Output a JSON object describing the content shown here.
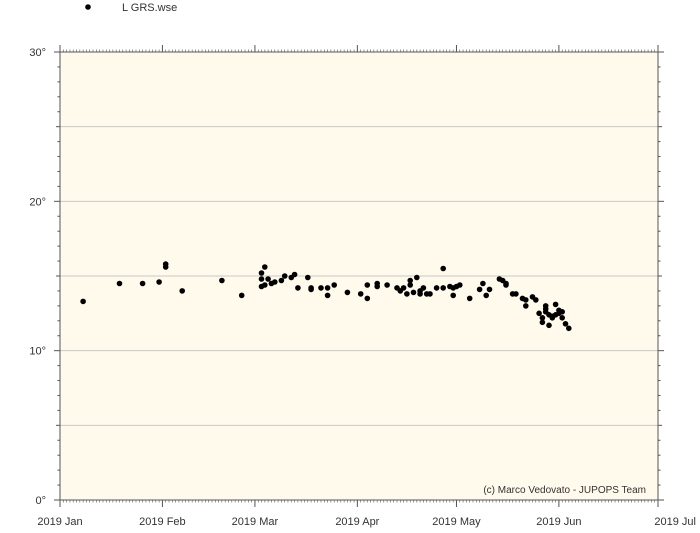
{
  "chart_data": {
    "type": "scatter",
    "xlabel": "",
    "ylabel": "",
    "x_ticks": [
      "2019 Jan",
      "2019 Feb",
      "2019 Mar",
      "2019 Apr",
      "2019 May",
      "2019 Jun",
      "2019 Jul"
    ],
    "x_range": [
      "2019-01-01",
      "2019-07-01"
    ],
    "y_ticks": [
      "0°",
      "10°",
      "20°",
      "30°"
    ],
    "ylim": [
      0,
      30
    ],
    "grid": "horizontal every 5°",
    "legend": {
      "position": "top-left",
      "label": "L GRS.wse",
      "marker": "black dot"
    },
    "credit": "(c) Marco Vedovato - JUPOPS Team",
    "colors": {
      "plot_background": "#fffaeb",
      "points": "#000000",
      "grid": "#c8c8c8",
      "frame": "#555555"
    },
    "series": [
      {
        "name": "L GRS.wse",
        "points": [
          [
            "2019-01-08",
            13.3
          ],
          [
            "2019-01-19",
            14.5
          ],
          [
            "2019-01-26",
            14.5
          ],
          [
            "2019-01-31",
            14.6
          ],
          [
            "2019-02-02",
            15.6
          ],
          [
            "2019-02-02",
            15.8
          ],
          [
            "2019-02-07",
            14.0
          ],
          [
            "2019-02-19",
            14.7
          ],
          [
            "2019-02-25",
            13.7
          ],
          [
            "2019-03-03",
            14.3
          ],
          [
            "2019-03-03",
            14.8
          ],
          [
            "2019-03-03",
            15.2
          ],
          [
            "2019-03-04",
            14.4
          ],
          [
            "2019-03-04",
            15.6
          ],
          [
            "2019-03-05",
            14.8
          ],
          [
            "2019-03-06",
            14.5
          ],
          [
            "2019-03-07",
            14.6
          ],
          [
            "2019-03-09",
            14.7
          ],
          [
            "2019-03-10",
            15.0
          ],
          [
            "2019-03-12",
            14.9
          ],
          [
            "2019-03-13",
            15.1
          ],
          [
            "2019-03-14",
            14.2
          ],
          [
            "2019-03-17",
            14.9
          ],
          [
            "2019-03-18",
            14.2
          ],
          [
            "2019-03-18",
            14.1
          ],
          [
            "2019-03-21",
            14.2
          ],
          [
            "2019-03-23",
            13.7
          ],
          [
            "2019-03-23",
            14.2
          ],
          [
            "2019-03-25",
            14.4
          ],
          [
            "2019-03-29",
            13.9
          ],
          [
            "2019-04-02",
            13.8
          ],
          [
            "2019-04-04",
            14.4
          ],
          [
            "2019-04-04",
            13.5
          ],
          [
            "2019-04-07",
            14.5
          ],
          [
            "2019-04-07",
            14.3
          ],
          [
            "2019-04-10",
            14.4
          ],
          [
            "2019-04-13",
            14.2
          ],
          [
            "2019-04-14",
            14.0
          ],
          [
            "2019-04-15",
            14.2
          ],
          [
            "2019-04-16",
            13.8
          ],
          [
            "2019-04-17",
            14.7
          ],
          [
            "2019-04-17",
            14.4
          ],
          [
            "2019-04-18",
            13.9
          ],
          [
            "2019-04-19",
            14.9
          ],
          [
            "2019-04-20",
            14.0
          ],
          [
            "2019-04-20",
            13.8
          ],
          [
            "2019-04-21",
            14.2
          ],
          [
            "2019-04-22",
            13.8
          ],
          [
            "2019-04-23",
            13.8
          ],
          [
            "2019-04-25",
            14.2
          ],
          [
            "2019-04-27",
            15.5
          ],
          [
            "2019-04-27",
            14.2
          ],
          [
            "2019-04-29",
            14.3
          ],
          [
            "2019-04-30",
            13.7
          ],
          [
            "2019-04-30",
            14.2
          ],
          [
            "2019-05-01",
            14.3
          ],
          [
            "2019-05-02",
            14.4
          ],
          [
            "2019-05-05",
            13.5
          ],
          [
            "2019-05-08",
            14.1
          ],
          [
            "2019-05-09",
            14.5
          ],
          [
            "2019-05-10",
            13.7
          ],
          [
            "2019-05-11",
            14.1
          ],
          [
            "2019-05-14",
            14.8
          ],
          [
            "2019-05-15",
            14.7
          ],
          [
            "2019-05-16",
            14.5
          ],
          [
            "2019-05-16",
            14.4
          ],
          [
            "2019-05-18",
            13.8
          ],
          [
            "2019-05-19",
            13.8
          ],
          [
            "2019-05-21",
            13.5
          ],
          [
            "2019-05-22",
            13.4
          ],
          [
            "2019-05-22",
            13.0
          ],
          [
            "2019-05-24",
            13.6
          ],
          [
            "2019-05-25",
            13.4
          ],
          [
            "2019-05-26",
            12.5
          ],
          [
            "2019-05-27",
            12.2
          ],
          [
            "2019-05-27",
            11.9
          ],
          [
            "2019-05-28",
            13.0
          ],
          [
            "2019-05-28",
            12.8
          ],
          [
            "2019-05-28",
            12.6
          ],
          [
            "2019-05-29",
            12.4
          ],
          [
            "2019-05-29",
            11.7
          ],
          [
            "2019-05-30",
            12.3
          ],
          [
            "2019-05-30",
            12.2
          ],
          [
            "2019-05-31",
            13.1
          ],
          [
            "2019-05-31",
            12.4
          ],
          [
            "2019-06-01",
            12.7
          ],
          [
            "2019-06-01",
            12.5
          ],
          [
            "2019-06-02",
            12.6
          ],
          [
            "2019-06-02",
            12.2
          ],
          [
            "2019-06-03",
            11.8
          ],
          [
            "2019-06-04",
            11.5
          ]
        ]
      }
    ]
  }
}
